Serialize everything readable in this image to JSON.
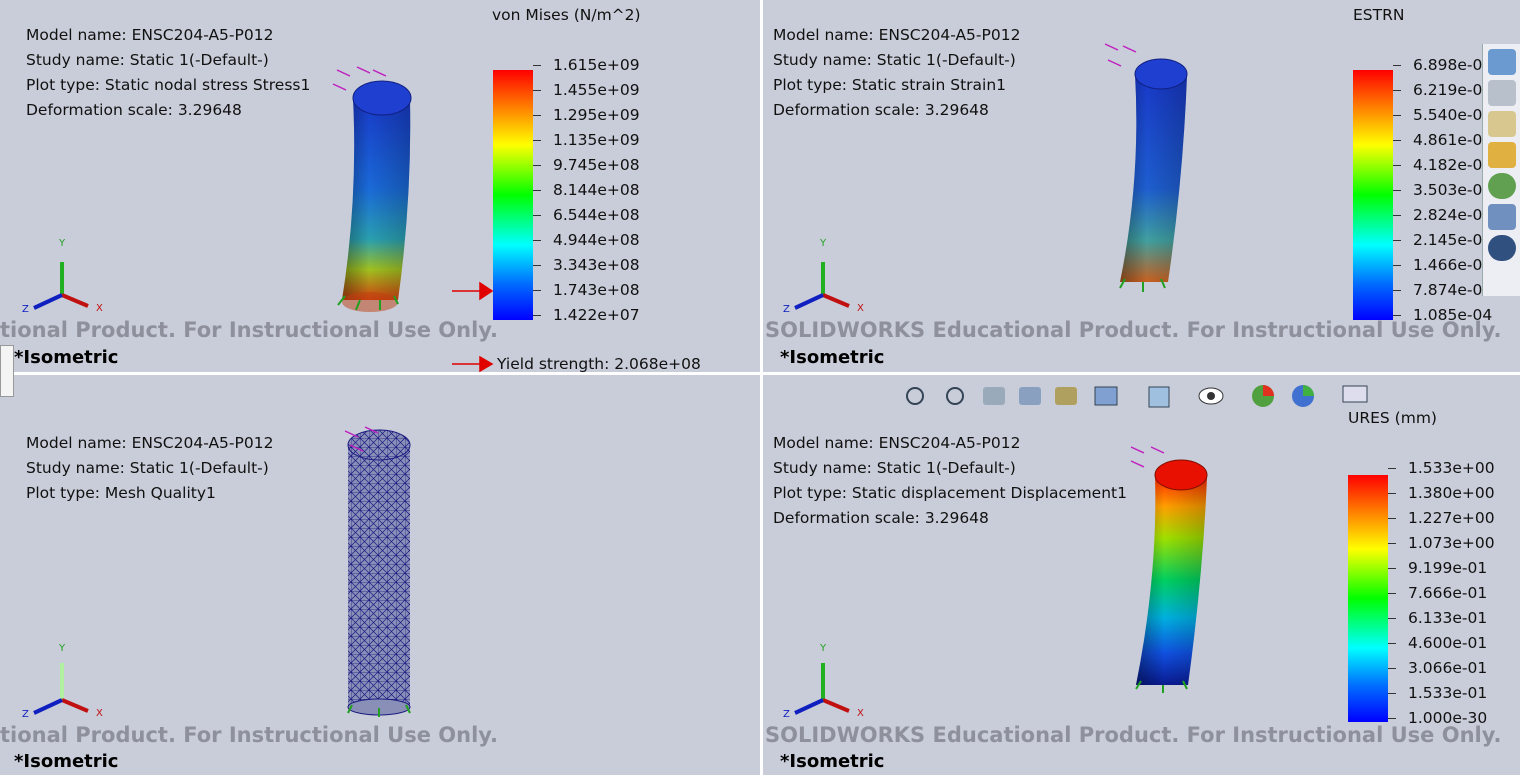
{
  "viewports": [
    {
      "info": [
        "Model name: ENSC204-A5-P012",
        "Study name: Static 1(-Default-)",
        "Plot type: Static nodal stress Stress1",
        "Deformation scale: 3.29648"
      ],
      "legend": {
        "title": "von Mises (N/m^2)",
        "labels": [
          "1.615e+09",
          "1.455e+09",
          "1.295e+09",
          "1.135e+09",
          "9.745e+08",
          "8.144e+08",
          "6.544e+08",
          "4.944e+08",
          "3.343e+08",
          "1.743e+08",
          "1.422e+07"
        ]
      },
      "yield_label": "Yield strength: 2.068e+08",
      "triad": {
        "y": "Y",
        "z": "Z",
        "x": "X"
      },
      "watermark": "tional Product. For Instructional Use Only.",
      "view": "*Isometric"
    },
    {
      "info": [
        "Model name: ENSC204-A5-P012",
        "Study name: Static 1(-Default-)",
        "Plot type: Static strain Strain1",
        "Deformation scale: 3.29648"
      ],
      "legend": {
        "title": "ESTRN",
        "labels": [
          "6.898e-0",
          "6.219e-0",
          "5.540e-0",
          "4.861e-0",
          "4.182e-0",
          "3.503e-0",
          "2.824e-0",
          "2.145e-0",
          "1.466e-0",
          "7.874e-0",
          "1.085e-04"
        ]
      },
      "triad": {
        "y": "Y",
        "z": "Z",
        "x": "X"
      },
      "watermark": "SOLIDWORKS Educational Product. For Instructional Use Only.",
      "view": "*Isometric"
    },
    {
      "info": [
        "Model name: ENSC204-A5-P012",
        "Study name: Static 1(-Default-)",
        "Plot type: Mesh Quality1"
      ],
      "triad": {
        "y": "Y",
        "z": "Z",
        "x": "X"
      },
      "watermark": "tional Product. For Instructional Use Only.",
      "view": "*Isometric"
    },
    {
      "info": [
        "Model name: ENSC204-A5-P012",
        "Study name: Static 1(-Default-)",
        "Plot type: Static displacement Displacement1",
        "Deformation scale: 3.29648"
      ],
      "legend": {
        "title": "URES (mm)",
        "labels": [
          "1.533e+00",
          "1.380e+00",
          "1.227e+00",
          "1.073e+00",
          "9.199e-01",
          "7.666e-01",
          "6.133e-01",
          "4.600e-01",
          "3.066e-01",
          "1.533e-01",
          "1.000e-30"
        ]
      },
      "triad": {
        "y": "Y",
        "z": "Z",
        "x": "X"
      },
      "watermark": "SOLIDWORKS Educational Product. For Instructional Use Only.",
      "view": "*Isometric"
    }
  ]
}
